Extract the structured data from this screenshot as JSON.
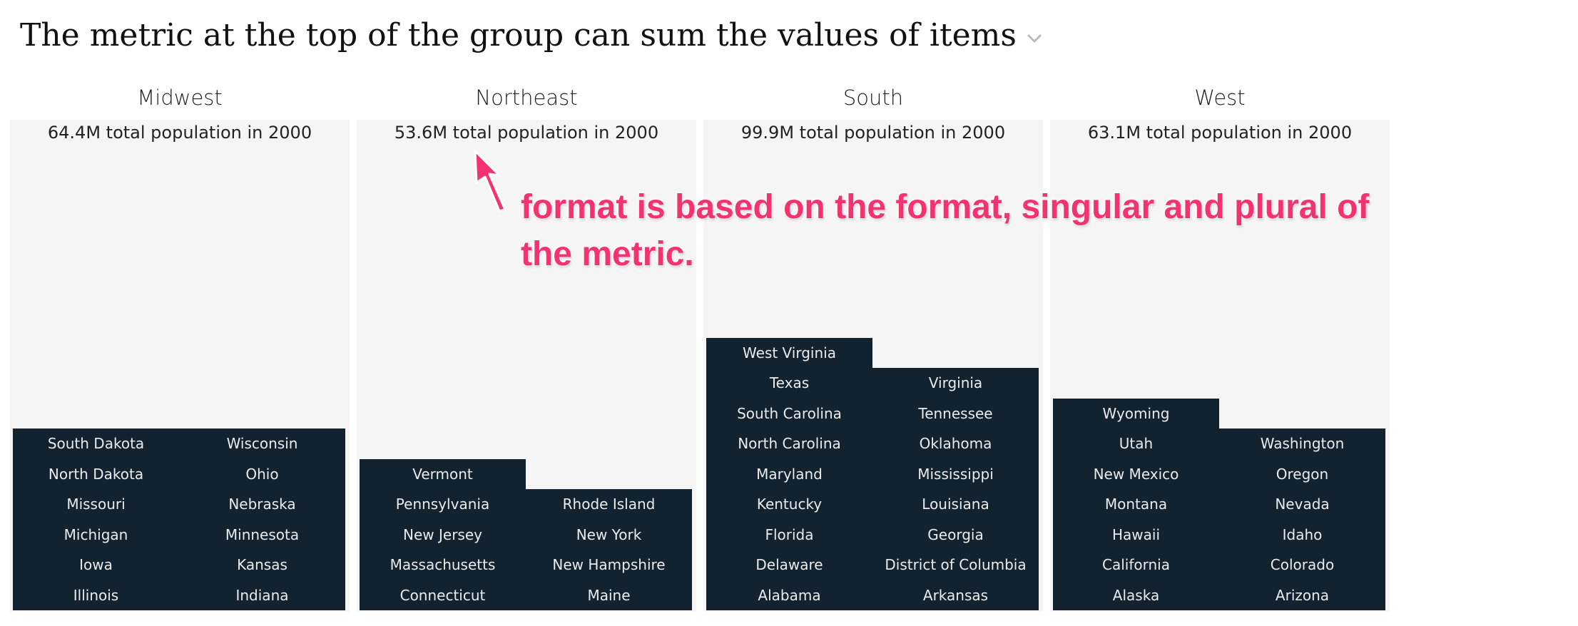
{
  "title": "The metric at the top of the group can sum the values of items",
  "icons": {
    "title_menu": "chevron-down-icon",
    "annotation_pointer": "arrow-icon"
  },
  "annotation": "format is based on the format, singular and plural of the metric.",
  "colors": {
    "block": "#13222f",
    "panel": "#f5f5f5",
    "annotation": "#f2336f"
  },
  "chart_data": {
    "type": "table",
    "groups": [
      {
        "name": "Midwest",
        "total_label": "64.4M total population in 2000",
        "columns": [
          [
            "South Dakota",
            "North Dakota",
            "Missouri",
            "Michigan",
            "Iowa",
            "Illinois"
          ],
          [
            "Wisconsin",
            "Ohio",
            "Nebraska",
            "Minnesota",
            "Kansas",
            "Indiana"
          ]
        ]
      },
      {
        "name": "Northeast",
        "total_label": "53.6M total population in 2000",
        "columns": [
          [
            "Vermont",
            "Pennsylvania",
            "New Jersey",
            "Massachusetts",
            "Connecticut"
          ],
          [
            "Rhode Island",
            "New York",
            "New Hampshire",
            "Maine"
          ]
        ]
      },
      {
        "name": "South",
        "total_label": "99.9M total population in 2000",
        "columns": [
          [
            "West Virginia",
            "Texas",
            "South Carolina",
            "North Carolina",
            "Maryland",
            "Kentucky",
            "Florida",
            "Delaware",
            "Alabama"
          ],
          [
            "Virginia",
            "Tennessee",
            "Oklahoma",
            "Mississippi",
            "Louisiana",
            "Georgia",
            "District of Columbia",
            "Arkansas"
          ]
        ]
      },
      {
        "name": "West",
        "total_label": "63.1M total population in 2000",
        "columns": [
          [
            "Wyoming",
            "Utah",
            "New Mexico",
            "Montana",
            "Hawaii",
            "California",
            "Alaska"
          ],
          [
            "Washington",
            "Oregon",
            "Nevada",
            "Idaho",
            "Colorado",
            "Arizona"
          ]
        ]
      }
    ]
  }
}
